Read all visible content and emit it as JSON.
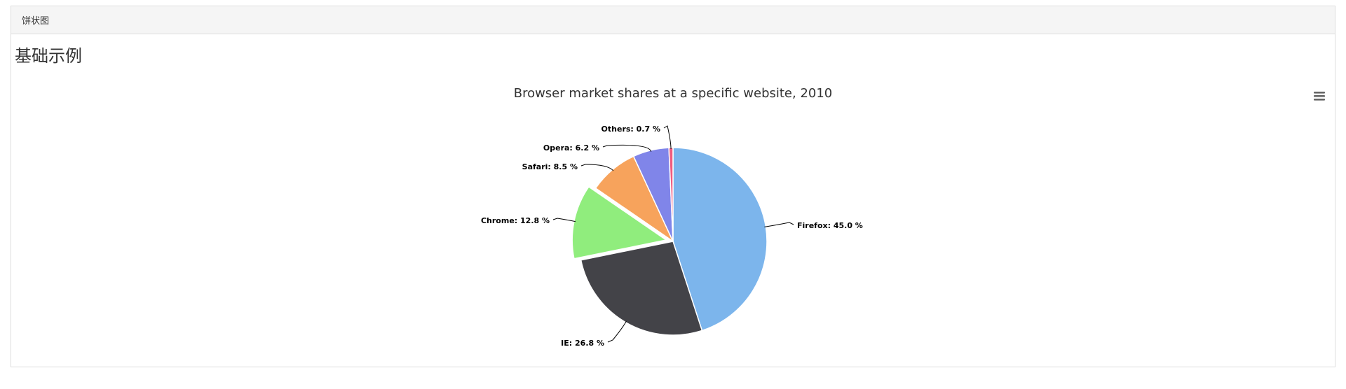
{
  "panel": {
    "heading": "饼状图",
    "section_title": "基础示例"
  },
  "chart_data": {
    "type": "pie",
    "title": "Browser market shares at a specific website, 2010",
    "series": [
      {
        "name": "",
        "data": [
          {
            "label": "Firefox",
            "value": 45.0,
            "color": "#7cb5ec",
            "sliced": false
          },
          {
            "label": "IE",
            "value": 26.8,
            "color": "#434348",
            "sliced": false
          },
          {
            "label": "Chrome",
            "value": 12.8,
            "color": "#90ed7d",
            "sliced": true
          },
          {
            "label": "Safari",
            "value": 8.5,
            "color": "#f7a35c",
            "sliced": false
          },
          {
            "label": "Opera",
            "value": 6.2,
            "color": "#8085e9",
            "sliced": false
          },
          {
            "label": "Others",
            "value": 0.7,
            "color": "#f15c80",
            "sliced": false
          }
        ]
      }
    ],
    "data_label_format": "{label}: {value} %",
    "start_angle": "top",
    "direction": "clockwise"
  },
  "menu_icon": "hamburger-menu-icon"
}
